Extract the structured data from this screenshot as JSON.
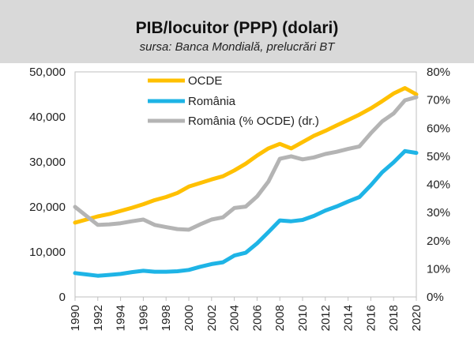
{
  "header": {
    "title": "PIB/locuitor (PPP) (dolari)",
    "subtitle": "sursa: Banca Mondială, prelucrări BT"
  },
  "chart_data": {
    "type": "line",
    "title": "PIB/locuitor (PPP) (dolari)",
    "subtitle": "sursa: Banca Mondială, prelucrări BT",
    "x": [
      1990,
      1991,
      1992,
      1993,
      1994,
      1995,
      1996,
      1997,
      1998,
      1999,
      2000,
      2001,
      2002,
      2003,
      2004,
      2005,
      2006,
      2007,
      2008,
      2009,
      2010,
      2011,
      2012,
      2013,
      2014,
      2015,
      2016,
      2017,
      2018,
      2019,
      2020
    ],
    "xticks": [
      "1990",
      "1992",
      "1994",
      "1996",
      "1998",
      "2000",
      "2002",
      "2004",
      "2006",
      "2008",
      "2010",
      "2012",
      "2014",
      "2016",
      "2018",
      "2020"
    ],
    "ylim": [
      0,
      50000
    ],
    "yticks": [
      "0",
      "10,000",
      "20,000",
      "30,000",
      "40,000",
      "50,000"
    ],
    "y2lim": [
      0,
      80
    ],
    "y2ticks": [
      "0%",
      "10%",
      "20%",
      "30%",
      "40%",
      "50%",
      "60%",
      "70%",
      "80%"
    ],
    "legend_position": "top-left",
    "series": [
      {
        "name": "OCDE",
        "axis": "left",
        "color": "#ffc000",
        "values": [
          16500,
          17200,
          17900,
          18400,
          19100,
          19800,
          20600,
          21500,
          22200,
          23100,
          24500,
          25300,
          26100,
          26800,
          28100,
          29600,
          31400,
          33000,
          34000,
          33000,
          34400,
          35800,
          36900,
          38100,
          39300,
          40500,
          41900,
          43500,
          45200,
          46400,
          45000
        ]
      },
      {
        "name": "România",
        "axis": "left",
        "color": "#1eb4e6",
        "values": [
          5300,
          5000,
          4700,
          4900,
          5100,
          5500,
          5800,
          5600,
          5600,
          5700,
          6000,
          6700,
          7300,
          7700,
          9200,
          9800,
          11900,
          14400,
          17000,
          16800,
          17100,
          18000,
          19200,
          20100,
          21200,
          22200,
          24800,
          27700,
          29900,
          32400,
          32000
        ]
      },
      {
        "name": "România (% OCDE) (dr.)",
        "axis": "right",
        "color": "#b4b4b4",
        "values": [
          32,
          28.8,
          25.6,
          25.8,
          26.2,
          26.9,
          27.5,
          25.6,
          24.8,
          24.1,
          23.9,
          25.8,
          27.5,
          28.3,
          31.6,
          32.1,
          35.7,
          41,
          49.1,
          50,
          48.9,
          49.6,
          50.8,
          51.6,
          52.6,
          53.5,
          58.2,
          62.4,
          65.2,
          69.9,
          71
        ]
      }
    ]
  }
}
